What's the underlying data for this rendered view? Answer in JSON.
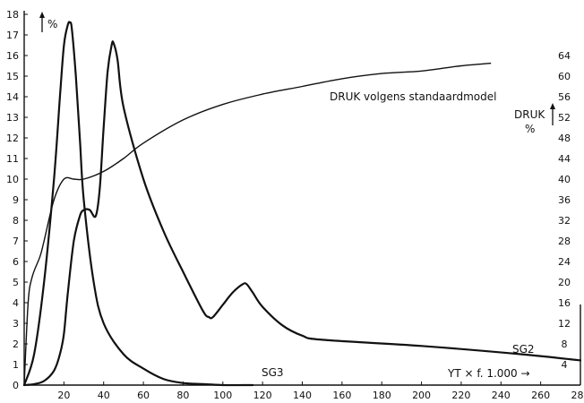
{
  "chart_data": {
    "type": "line",
    "left_axis_label": "%",
    "right_axis_label_line1": "DRUK",
    "right_axis_label_line2": "%",
    "x_axis_label": "YT × f. 1.000 →",
    "x_ticks": [
      "20",
      "40",
      "60",
      "80",
      "100",
      "120",
      "140",
      "160",
      "180",
      "200",
      "220",
      "240",
      "260",
      "280"
    ],
    "x_tick_values": [
      20,
      40,
      60,
      80,
      100,
      120,
      140,
      160,
      180,
      200,
      220,
      240,
      260,
      280
    ],
    "xlim": [
      0,
      280
    ],
    "left_ticks": [
      "0",
      "1",
      "2",
      "3",
      "4",
      "5",
      "6",
      "7",
      "8",
      "9",
      "10",
      "11",
      "12",
      "13",
      "14",
      "15",
      "16",
      "17",
      "18"
    ],
    "left_tick_values": [
      0,
      1,
      2,
      3,
      4,
      5,
      6,
      7,
      8,
      9,
      10,
      11,
      12,
      13,
      14,
      15,
      16,
      17,
      18
    ],
    "ylim_left": [
      0,
      18
    ],
    "right_ticks": [
      "4",
      "8",
      "12",
      "16",
      "20",
      "24",
      "28",
      "32",
      "36",
      "40",
      "44",
      "48",
      "52",
      "56",
      "60",
      "64"
    ],
    "right_tick_values": [
      4,
      8,
      12,
      16,
      20,
      24,
      28,
      32,
      36,
      40,
      44,
      48,
      52,
      56,
      60,
      64
    ],
    "ylim_right": [
      0,
      72
    ],
    "series": [
      {
        "name": "SG3",
        "axis": "left",
        "x": [
          0,
          5,
          10,
          15,
          18,
          20,
          22,
          23,
          24,
          26,
          28,
          30,
          35,
          40,
          50,
          60,
          70,
          80,
          90,
          100,
          110,
          115
        ],
        "y": [
          0,
          1.5,
          5,
          10,
          14,
          16.5,
          17.5,
          17.6,
          17.3,
          15,
          12,
          9,
          5,
          3,
          1.5,
          0.8,
          0.3,
          0.1,
          0.05,
          0,
          0,
          0
        ]
      },
      {
        "name": "SG2",
        "axis": "left",
        "x": [
          0,
          5,
          10,
          15,
          18,
          20,
          22,
          25,
          28,
          30,
          33,
          36,
          38,
          40,
          42,
          44,
          45,
          47,
          50,
          60,
          70,
          80,
          90,
          93,
          95,
          100,
          105,
          110,
          112,
          115,
          120,
          130,
          140,
          150,
          200,
          250,
          280
        ],
        "y": [
          0,
          0.05,
          0.2,
          0.7,
          1.5,
          2.5,
          4.5,
          7.0,
          8.2,
          8.5,
          8.5,
          8.2,
          9.5,
          12.5,
          15.2,
          16.5,
          16.6,
          15.8,
          13.5,
          10,
          7.5,
          5.5,
          3.6,
          3.3,
          3.3,
          3.9,
          4.5,
          4.9,
          4.9,
          4.5,
          3.8,
          2.9,
          2.4,
          2.2,
          1.9,
          1.5,
          1.2
        ]
      },
      {
        "name": "DRUK volgens standaardmodel",
        "axis": "right",
        "x": [
          0,
          2,
          4,
          8,
          10,
          15,
          20,
          25,
          30,
          40,
          50,
          60,
          80,
          100,
          120,
          140,
          160,
          180,
          200,
          220,
          235
        ],
        "y": [
          0,
          16,
          21,
          25,
          28,
          36,
          40,
          40,
          40,
          41.5,
          44,
          47,
          51.5,
          54.5,
          56.5,
          58,
          59.5,
          60.5,
          61,
          62,
          62.5
        ]
      }
    ],
    "annotations": [
      {
        "text": "DRUK volgens standaardmodel",
        "x": 155,
        "y_right": 54.5
      },
      {
        "text": "SG2",
        "x": 260,
        "y_left": 1.8
      },
      {
        "text": "SG3",
        "x": 113,
        "y_left": 0.6
      }
    ]
  }
}
